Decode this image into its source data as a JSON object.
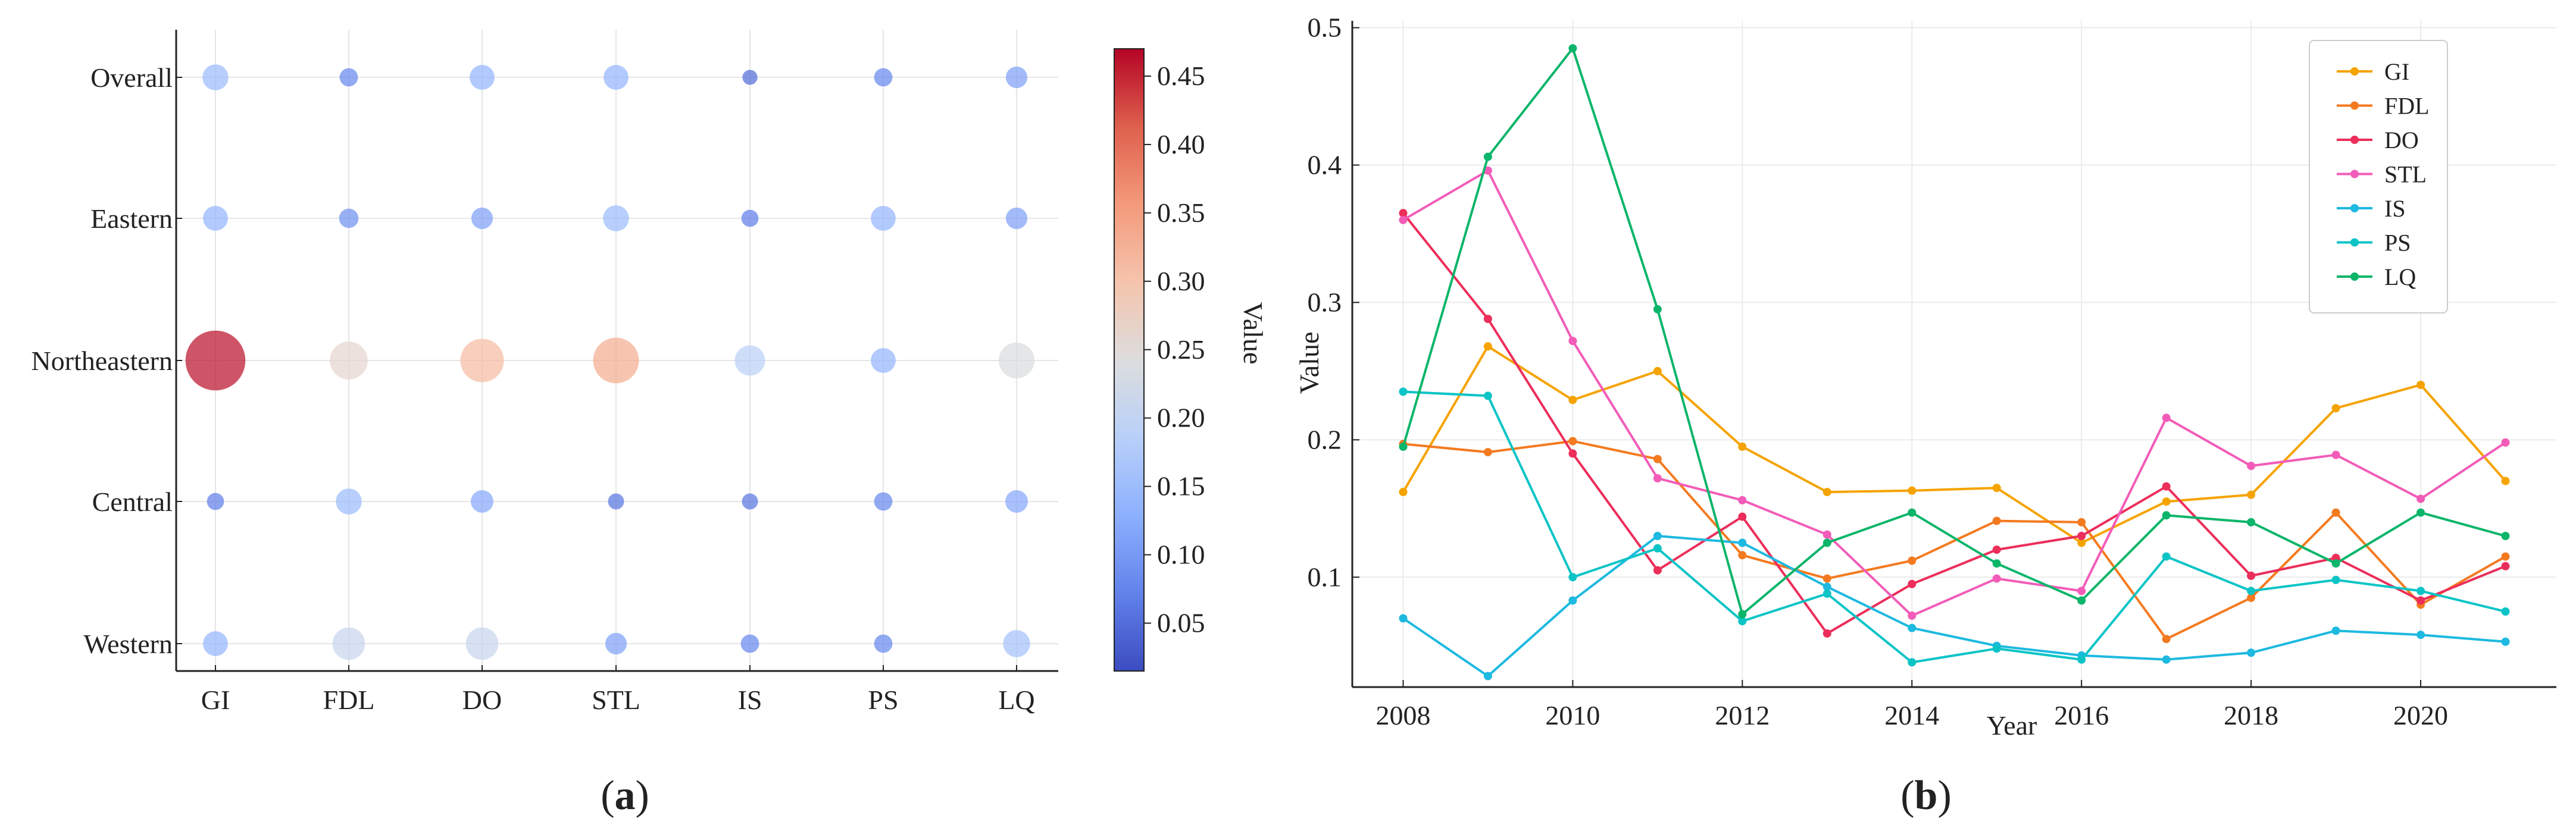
{
  "panels": [
    {
      "label_open": "(",
      "label_letter": "a",
      "label_close": ")"
    },
    {
      "label_open": "(",
      "label_letter": "b",
      "label_close": ")"
    }
  ],
  "chart_data": [
    {
      "type": "scatter",
      "subtype": "bubble-matrix",
      "panel": "a",
      "x_categories": [
        "GI",
        "FDL",
        "DO",
        "STL",
        "IS",
        "PS",
        "LQ"
      ],
      "y_categories": [
        "Overall",
        "Eastern",
        "Northeastern",
        "Central",
        "Western"
      ],
      "values": [
        [
          0.15,
          0.08,
          0.14,
          0.14,
          0.05,
          0.08,
          0.11
        ],
        [
          0.14,
          0.09,
          0.11,
          0.15,
          0.07,
          0.14,
          0.11
        ],
        [
          0.46,
          0.26,
          0.31,
          0.33,
          0.19,
          0.14,
          0.24
        ],
        [
          0.07,
          0.15,
          0.12,
          0.06,
          0.06,
          0.08,
          0.12
        ],
        [
          0.14,
          0.21,
          0.21,
          0.11,
          0.08,
          0.08,
          0.16
        ]
      ],
      "colorbar": {
        "label": "Value",
        "range": [
          0.015,
          0.47
        ],
        "ticks": [
          "0.05",
          "0.10",
          "0.15",
          "0.20",
          "0.25",
          "0.30",
          "0.35",
          "0.40",
          "0.45"
        ],
        "colormap": "coolwarm"
      },
      "grid": true
    },
    {
      "type": "line",
      "panel": "b",
      "xlabel": "Year",
      "ylabel": "Value",
      "xlim": [
        2007.4,
        2021.6
      ],
      "ylim": [
        0.02,
        0.505
      ],
      "xticks": [
        "2008",
        "2010",
        "2012",
        "2014",
        "2016",
        "2018",
        "2020"
      ],
      "yticks": [
        "0.1",
        "0.2",
        "0.3",
        "0.4",
        "0.5"
      ],
      "grid": true,
      "legend_position": "top-right",
      "x": [
        2008,
        2009,
        2010,
        2011,
        2012,
        2013,
        2014,
        2015,
        2016,
        2017,
        2018,
        2019,
        2020,
        2021
      ],
      "series": [
        {
          "name": "GI",
          "color": "#F5A300",
          "values": [
            0.162,
            0.268,
            0.229,
            0.25,
            0.195,
            0.162,
            0.163,
            0.165,
            0.125,
            0.155,
            0.16,
            0.223,
            0.24,
            0.17
          ]
        },
        {
          "name": "FDL",
          "color": "#F47A20",
          "values": [
            0.197,
            0.191,
            0.199,
            0.186,
            0.116,
            0.099,
            0.112,
            0.141,
            0.14,
            0.055,
            0.085,
            0.147,
            0.08,
            0.115
          ]
        },
        {
          "name": "DO",
          "color": "#EC2E5A",
          "values": [
            0.365,
            0.288,
            0.19,
            0.105,
            0.144,
            0.059,
            0.095,
            0.12,
            0.13,
            0.166,
            0.101,
            0.114,
            0.083,
            0.108
          ]
        },
        {
          "name": "STL",
          "color": "#F25CB8",
          "values": [
            0.36,
            0.396,
            0.272,
            0.172,
            0.156,
            0.131,
            0.072,
            0.099,
            0.09,
            0.216,
            0.181,
            0.189,
            0.157,
            0.198
          ]
        },
        {
          "name": "IS",
          "color": "#1DB9E0",
          "values": [
            0.07,
            0.028,
            0.083,
            0.13,
            0.125,
            0.093,
            0.063,
            0.05,
            0.043,
            0.04,
            0.045,
            0.061,
            0.058,
            0.053
          ]
        },
        {
          "name": "PS",
          "color": "#0CC4C6",
          "values": [
            0.235,
            0.232,
            0.1,
            0.121,
            0.068,
            0.088,
            0.038,
            0.048,
            0.04,
            0.115,
            0.09,
            0.098,
            0.09,
            0.075
          ]
        },
        {
          "name": "LQ",
          "color": "#0BB56A",
          "values": [
            0.195,
            0.406,
            0.485,
            0.295,
            0.073,
            0.125,
            0.147,
            0.11,
            0.083,
            0.145,
            0.14,
            0.11,
            0.147,
            0.13
          ]
        }
      ]
    }
  ]
}
